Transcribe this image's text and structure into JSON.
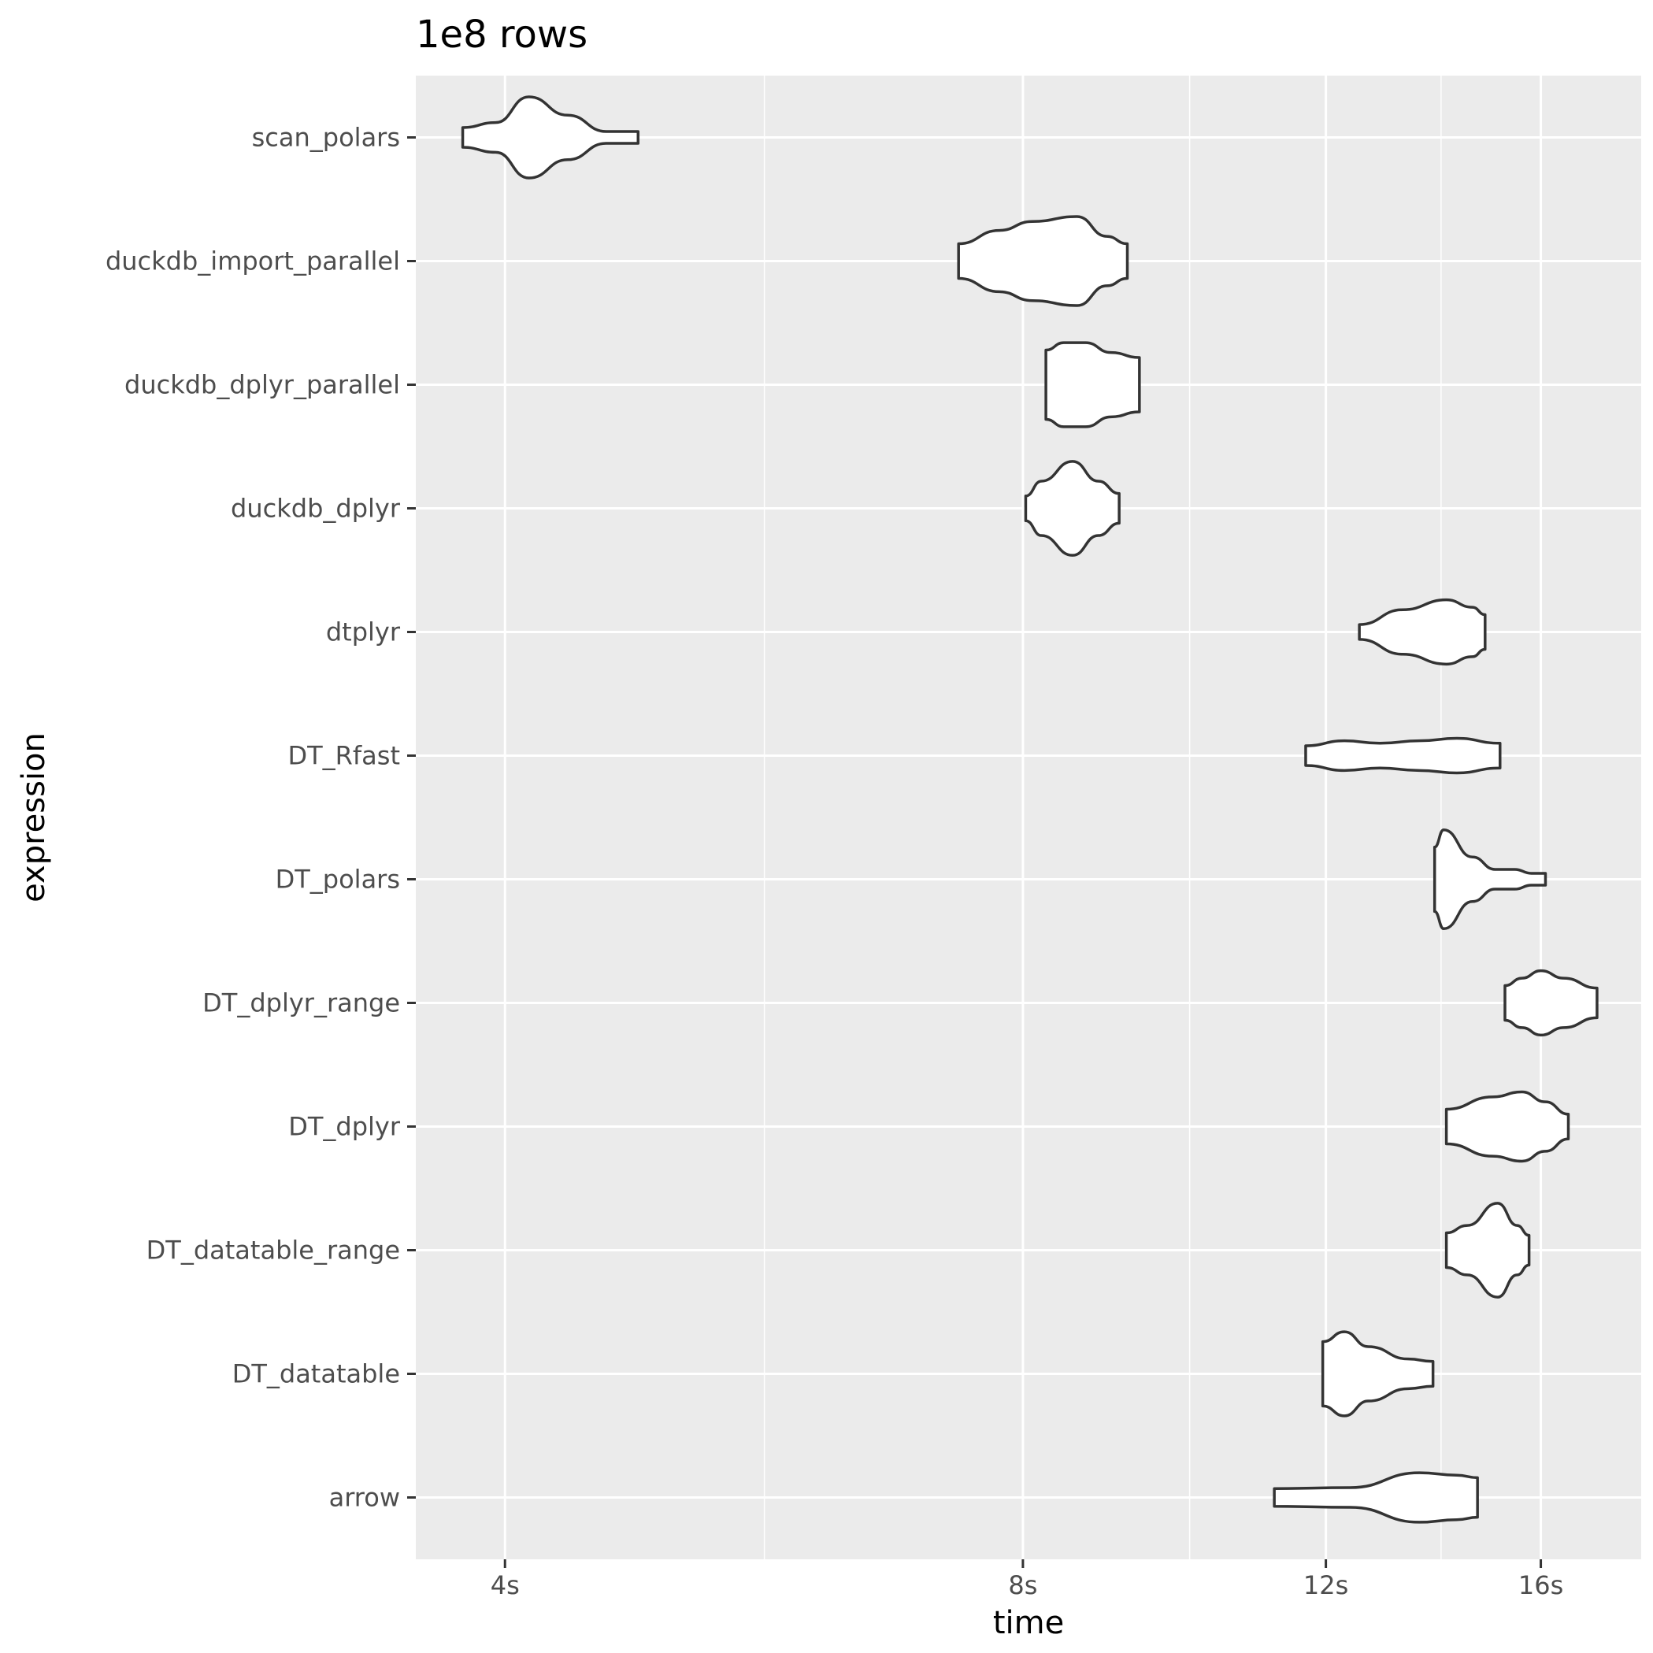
{
  "chart_data": {
    "type": "violin",
    "title": "1e8 rows",
    "xlabel": "time",
    "ylabel": "expression",
    "x_scale": "log10",
    "x_unit": "s",
    "xlim": [
      3.55,
      18.3
    ],
    "x_ticks": [
      {
        "value": 4,
        "label": "4s"
      },
      {
        "value": 8,
        "label": "8s"
      },
      {
        "value": 12,
        "label": "12s"
      },
      {
        "value": 16,
        "label": "16s"
      }
    ],
    "x_minor_ticks": [
      5.66,
      10,
      14
    ],
    "grid": true,
    "legend": "none",
    "categories": [
      "scan_polars",
      "duckdb_import_parallel",
      "duckdb_dplyr_parallel",
      "duckdb_dplyr",
      "dtplyr",
      "DT_Rfast",
      "DT_polars",
      "DT_dplyr_range",
      "DT_dplyr",
      "DT_datatable_range",
      "DT_datatable",
      "arrow"
    ],
    "series": [
      {
        "category": "scan_polars",
        "density": [
          [
            3.78,
            0.2
          ],
          [
            3.95,
            0.3
          ],
          [
            4.13,
            0.82
          ],
          [
            4.35,
            0.45
          ],
          [
            4.58,
            0.12
          ],
          [
            4.78,
            0.12
          ]
        ]
      },
      {
        "category": "duckdb_import_parallel",
        "density": [
          [
            7.34,
            0.35
          ],
          [
            7.75,
            0.62
          ],
          [
            8.1,
            0.8
          ],
          [
            8.6,
            0.9
          ],
          [
            8.95,
            0.5
          ],
          [
            9.2,
            0.35
          ]
        ]
      },
      {
        "category": "duckdb_dplyr_parallel",
        "density": [
          [
            8.25,
            0.7
          ],
          [
            8.45,
            0.85
          ],
          [
            8.7,
            0.85
          ],
          [
            9.0,
            0.65
          ],
          [
            9.35,
            0.55
          ]
        ]
      },
      {
        "category": "duckdb_dplyr",
        "density": [
          [
            8.03,
            0.25
          ],
          [
            8.2,
            0.55
          ],
          [
            8.55,
            0.95
          ],
          [
            8.85,
            0.55
          ],
          [
            9.1,
            0.3
          ]
        ]
      },
      {
        "category": "dtplyr",
        "density": [
          [
            12.55,
            0.15
          ],
          [
            13.3,
            0.45
          ],
          [
            14.1,
            0.65
          ],
          [
            14.6,
            0.5
          ],
          [
            14.85,
            0.35
          ]
        ]
      },
      {
        "category": "DT_Rfast",
        "density": [
          [
            11.68,
            0.2
          ],
          [
            12.3,
            0.3
          ],
          [
            12.9,
            0.25
          ],
          [
            13.6,
            0.3
          ],
          [
            14.3,
            0.35
          ],
          [
            15.15,
            0.25
          ]
        ]
      },
      {
        "category": "DT_polars",
        "density": [
          [
            13.88,
            0.65
          ],
          [
            14.05,
            1.0
          ],
          [
            14.6,
            0.45
          ],
          [
            15.05,
            0.2
          ],
          [
            15.45,
            0.2
          ],
          [
            15.8,
            0.12
          ],
          [
            16.1,
            0.12
          ]
        ]
      },
      {
        "category": "DT_dplyr_range",
        "density": [
          [
            15.25,
            0.35
          ],
          [
            15.6,
            0.5
          ],
          [
            16.0,
            0.65
          ],
          [
            16.5,
            0.5
          ],
          [
            17.25,
            0.3
          ]
        ]
      },
      {
        "category": "DT_dplyr",
        "density": [
          [
            14.1,
            0.35
          ],
          [
            15.0,
            0.6
          ],
          [
            15.6,
            0.7
          ],
          [
            16.1,
            0.5
          ],
          [
            16.6,
            0.25
          ]
        ]
      },
      {
        "category": "DT_datatable_range",
        "density": [
          [
            14.1,
            0.35
          ],
          [
            14.5,
            0.5
          ],
          [
            15.1,
            0.95
          ],
          [
            15.5,
            0.5
          ],
          [
            15.75,
            0.3
          ]
        ]
      },
      {
        "category": "DT_datatable",
        "density": [
          [
            11.95,
            0.65
          ],
          [
            12.3,
            0.85
          ],
          [
            12.7,
            0.55
          ],
          [
            13.4,
            0.3
          ],
          [
            13.85,
            0.25
          ]
        ]
      },
      {
        "category": "arrow",
        "density": [
          [
            11.2,
            0.18
          ],
          [
            12.4,
            0.2
          ],
          [
            13.6,
            0.5
          ],
          [
            14.3,
            0.45
          ],
          [
            14.7,
            0.4
          ]
        ]
      }
    ]
  },
  "colors": {
    "panel_background": "#ebebeb",
    "gridline": "#ffffff",
    "violin_fill": "#ffffff",
    "violin_stroke": "#333333",
    "tick_label": "#4d4d4d",
    "tick_mark": "#333333"
  }
}
